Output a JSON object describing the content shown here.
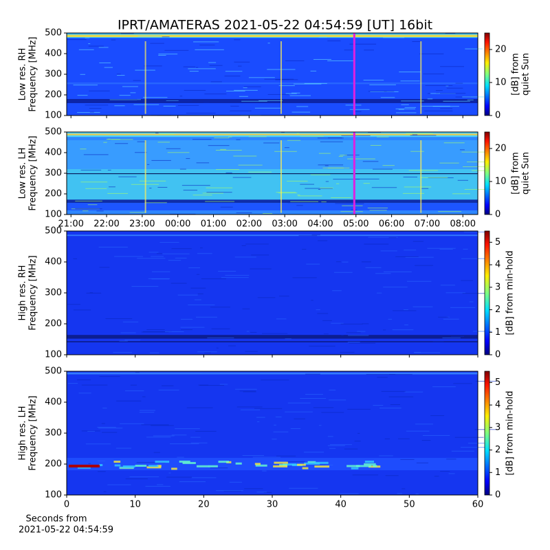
{
  "chart_data": [
    {
      "type": "heatmap",
      "title": "IPRT/AMATERAS 2021-05-22 04:54:59 [UT]   16bit",
      "ylabel": [
        "Low res. RH",
        "Frequency [MHz]"
      ],
      "ylim": [
        100,
        500
      ],
      "yticks": [
        100,
        200,
        300,
        400,
        500
      ],
      "xlim": [
        20.88,
        32.42
      ],
      "xticks": [
        21,
        22,
        23,
        24,
        25,
        26,
        27,
        28,
        29,
        30,
        31,
        32
      ],
      "show_xtick_labels": false,
      "colorbar_label": [
        "[dB] from",
        "quiet Sun"
      ],
      "clim": [
        0,
        25
      ],
      "cticks": [
        0,
        10,
        20
      ]
    },
    {
      "type": "heatmap",
      "ylabel": [
        "Low res. LH",
        "Frequency [MHz]"
      ],
      "ylim": [
        100,
        500
      ],
      "yticks": [
        100,
        200,
        300,
        400,
        500
      ],
      "xlim": [
        20.88,
        32.42
      ],
      "xticks": [
        {
          "value": 21,
          "label": "21:00"
        },
        {
          "value": 22,
          "label": "22:00"
        },
        {
          "value": 23,
          "label": "23:00"
        },
        {
          "value": 24,
          "label": "00:00"
        },
        {
          "value": 25,
          "label": "01:00"
        },
        {
          "value": 26,
          "label": "02:00"
        },
        {
          "value": 27,
          "label": "03:00"
        },
        {
          "value": 28,
          "label": "04:00"
        },
        {
          "value": 29,
          "label": "05:00"
        },
        {
          "value": 30,
          "label": "06:00"
        },
        {
          "value": 31,
          "label": "07:00"
        },
        {
          "value": 32,
          "label": "08:00"
        }
      ],
      "show_xtick_labels": true,
      "colorbar_label": [
        "[dB] from",
        "quiet Sun"
      ],
      "clim": [
        0,
        25
      ],
      "cticks": [
        0,
        10,
        20
      ]
    },
    {
      "type": "heatmap",
      "ylabel": [
        "High res. RH",
        "Frequency [MHz]"
      ],
      "ylim": [
        100,
        500
      ],
      "yticks": [
        100,
        200,
        300,
        400,
        500
      ],
      "xlim": [
        0,
        60
      ],
      "xticks": [
        0,
        10,
        20,
        30,
        40,
        50,
        60
      ],
      "show_xtick_labels": false,
      "colorbar_label": [
        "[dB] from min-hold"
      ],
      "clim": [
        0,
        5.5
      ],
      "cticks": [
        0,
        1,
        2,
        3,
        4,
        5
      ]
    },
    {
      "type": "heatmap",
      "ylabel": [
        "High res. LH",
        "Frequency [MHz]"
      ],
      "ylim": [
        100,
        500
      ],
      "yticks": [
        100,
        200,
        300,
        400,
        500
      ],
      "xlim": [
        0,
        60
      ],
      "xticks": [
        0,
        10,
        20,
        30,
        40,
        50,
        60
      ],
      "show_xtick_labels": true,
      "xlabel": [
        "Seconds from",
        "2021-05-22 04:54:59"
      ],
      "colorbar_label": [
        "[dB] from min-hold"
      ],
      "clim": [
        0,
        5.5
      ],
      "cticks": [
        0,
        1,
        2,
        3,
        4,
        5
      ]
    }
  ]
}
